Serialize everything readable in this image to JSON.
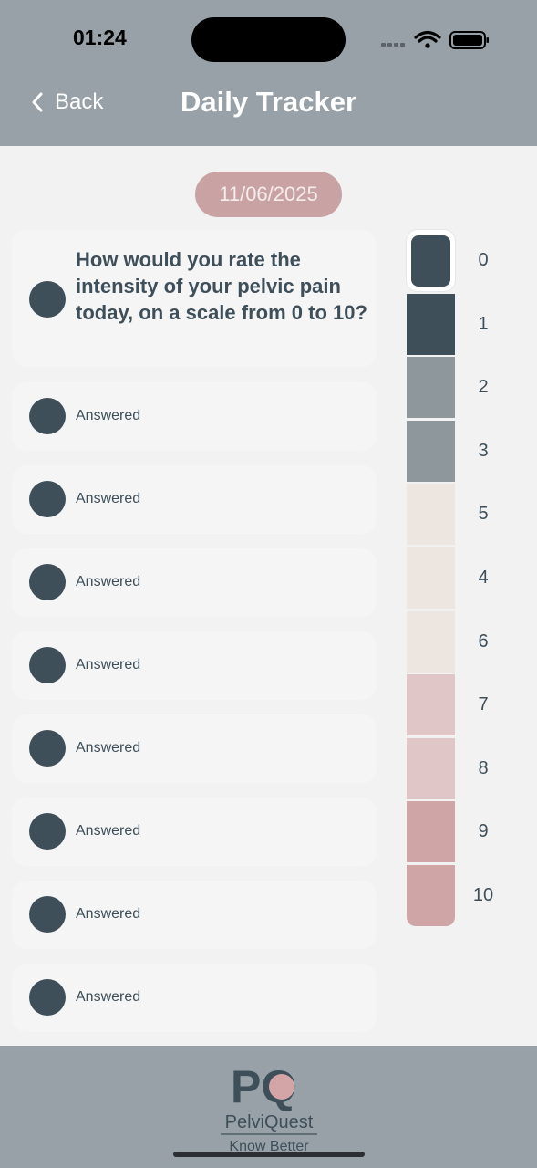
{
  "status_bar": {
    "time": "01:24"
  },
  "header": {
    "back_label": "Back",
    "title": "Daily Tracker"
  },
  "date": "11/06/2025",
  "question": {
    "text": "How would you rate the intensity of your pelvic pain today, on a scale from 0 to 10?"
  },
  "answered_items": [
    "Answered",
    "Answered",
    "Answered",
    "Answered",
    "Answered",
    "Answered",
    "Answered",
    "Answered"
  ],
  "scale": {
    "selected": "0",
    "options": [
      {
        "label": "0",
        "color": "#3e4f5a"
      },
      {
        "label": "1",
        "color": "#3e4f5a"
      },
      {
        "label": "2",
        "color": "#8e979c"
      },
      {
        "label": "3",
        "color": "#8e979c"
      },
      {
        "label": "5",
        "color": "#ede5df"
      },
      {
        "label": "4",
        "color": "#ede5df"
      },
      {
        "label": "6",
        "color": "#ede5df"
      },
      {
        "label": "7",
        "color": "#e0c6c6"
      },
      {
        "label": "8",
        "color": "#e0c6c6"
      },
      {
        "label": "9",
        "color": "#cfa5a5"
      },
      {
        "label": "10",
        "color": "#cfa5a5"
      }
    ]
  },
  "footer": {
    "logo_letters": "PQ",
    "brand": "PelviQuest",
    "tagline": "Know Better"
  },
  "colors": {
    "header": "#98a1a7",
    "accent_dark": "#3e4f5a",
    "date_pill": "#c9a3a4",
    "logo_pink": "#d4a5a6"
  }
}
